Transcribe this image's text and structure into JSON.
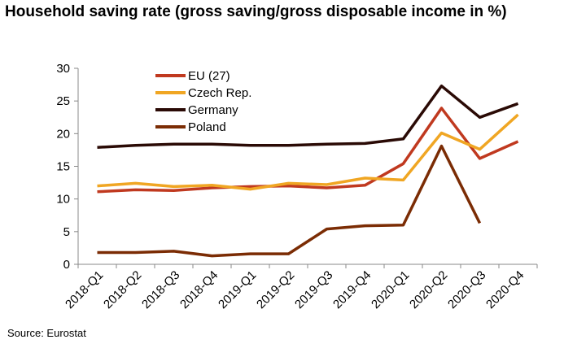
{
  "chart_data": {
    "type": "line",
    "title": "Household saving rate (gross saving/gross disposable income in %)",
    "xlabel": "",
    "ylabel": "",
    "categories": [
      "2018-Q1",
      "2018-Q2",
      "2018-Q3",
      "2018-Q4",
      "2019-Q1",
      "2019-Q2",
      "2019-Q3",
      "2019-Q4",
      "2020-Q1",
      "2020-Q2",
      "2020-Q3",
      "2020-Q4"
    ],
    "ylim": [
      0,
      30
    ],
    "yticks": [
      0,
      5,
      10,
      15,
      20,
      25,
      30
    ],
    "grid": false,
    "legend_position": "top-left inside plot",
    "series": [
      {
        "name": "EU (27)",
        "color": "#c0391f",
        "values": [
          11.1,
          11.4,
          11.3,
          11.7,
          11.9,
          12.0,
          11.7,
          12.1,
          15.4,
          23.9,
          16.2,
          18.8
        ]
      },
      {
        "name": "Czech Rep.",
        "color": "#f0a623",
        "values": [
          12.0,
          12.4,
          11.9,
          12.1,
          11.5,
          12.4,
          12.2,
          13.2,
          12.9,
          20.1,
          17.6,
          22.9
        ]
      },
      {
        "name": "Germany",
        "color": "#2a0a05",
        "values": [
          17.9,
          18.2,
          18.4,
          18.4,
          18.2,
          18.2,
          18.4,
          18.5,
          19.2,
          27.3,
          22.5,
          24.6
        ]
      },
      {
        "name": "Poland",
        "color": "#7b2c04",
        "values": [
          1.8,
          1.8,
          2.0,
          1.3,
          1.6,
          1.6,
          5.4,
          5.9,
          6.0,
          18.1,
          6.3,
          null
        ]
      }
    ]
  },
  "source_text": "Source: Eurostat"
}
